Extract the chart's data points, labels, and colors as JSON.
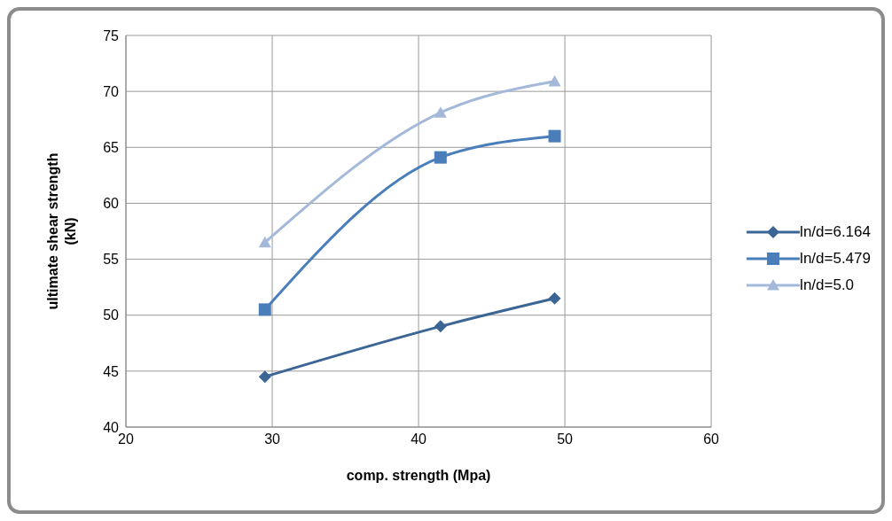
{
  "chart_data": {
    "type": "line",
    "xlabel": "comp. strength (Mpa)",
    "ylabel": "ultimate shear strength\n(kN)",
    "xlim": [
      20,
      60
    ],
    "xticks": [
      20,
      30,
      40,
      50,
      60
    ],
    "ylim": [
      40,
      75
    ],
    "yticks": [
      40,
      45,
      50,
      55,
      60,
      65,
      70,
      75
    ],
    "grid": true,
    "legend": "right",
    "line_style": "solid",
    "series": [
      {
        "name": "ln/d=6.164",
        "color": "#3b6595",
        "marker": "diamond",
        "x": [
          29.5,
          41.5,
          49.3
        ],
        "values": [
          44.5,
          49,
          51.5
        ]
      },
      {
        "name": "ln/d=5.479",
        "color": "#4a7ebb",
        "marker": "square",
        "x": [
          29.5,
          41.5,
          49.3
        ],
        "values": [
          50.5,
          64.1,
          66
        ]
      },
      {
        "name": "ln/d=5.0",
        "color": "#a4b9d9",
        "marker": "triangle",
        "x": [
          29.5,
          41.5,
          49.3
        ],
        "values": [
          56.5,
          68.1,
          70.9
        ]
      }
    ]
  }
}
